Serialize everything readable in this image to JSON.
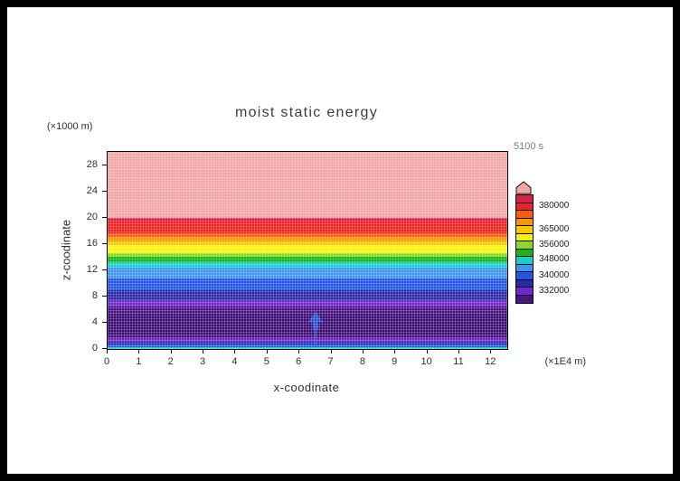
{
  "page": {
    "background": "#000000",
    "canvas_background": "#ffffff"
  },
  "chart_data": {
    "type": "heatmap",
    "title": "moist static energy",
    "timestamp": "5100 s",
    "xlabel": "x-coodinate",
    "ylabel": "z-coodinate",
    "x_units": "(×1E4 m)",
    "y_units": "(×1000 m)",
    "xlim": [
      0,
      12.5
    ],
    "ylim": [
      0,
      30
    ],
    "x_ticks": [
      "0",
      "1",
      "2",
      "3",
      "4",
      "5",
      "6",
      "7",
      "8",
      "9",
      "10",
      "11",
      "12"
    ],
    "y_ticks": [
      "0",
      "4",
      "8",
      "12",
      "16",
      "20",
      "24",
      "28"
    ],
    "legend_position": "right",
    "grid": false,
    "bands": [
      {
        "name": "pink",
        "color": "#f2a6a6",
        "z_from": 20.0,
        "z_to": 30.0
      },
      {
        "name": "crimson",
        "color": "#d8204a",
        "z_from": 19.4,
        "z_to": 20.0
      },
      {
        "name": "red",
        "color": "#ee2222",
        "z_from": 17.6,
        "z_to": 19.4
      },
      {
        "name": "orange-red",
        "color": "#fa5a0a",
        "z_from": 17.0,
        "z_to": 17.6
      },
      {
        "name": "orange",
        "color": "#fa9600",
        "z_from": 16.4,
        "z_to": 17.0
      },
      {
        "name": "amber",
        "color": "#fac800",
        "z_from": 15.8,
        "z_to": 16.4
      },
      {
        "name": "yellow",
        "color": "#f5f50a",
        "z_from": 14.6,
        "z_to": 15.8
      },
      {
        "name": "yellow-green",
        "color": "#8cd91e",
        "z_from": 14.0,
        "z_to": 14.6
      },
      {
        "name": "green",
        "color": "#17b517",
        "z_from": 13.2,
        "z_to": 14.0
      },
      {
        "name": "cyan",
        "color": "#18cdcd",
        "z_from": 12.4,
        "z_to": 13.2
      },
      {
        "name": "light-blue",
        "color": "#3c96f0",
        "z_from": 10.8,
        "z_to": 12.4
      },
      {
        "name": "blue",
        "color": "#2255e6",
        "z_from": 9.0,
        "z_to": 10.8
      },
      {
        "name": "navy",
        "color": "#2a2aa8",
        "z_from": 7.4,
        "z_to": 9.0
      },
      {
        "name": "purple",
        "color": "#7026c8",
        "z_from": 6.4,
        "z_to": 7.4
      },
      {
        "name": "dark-purple-upper",
        "color": "#4a1486",
        "z_from": 5.2,
        "z_to": 6.4
      },
      {
        "name": "violet-core",
        "color": "#3c0d73",
        "z_from": 2.2,
        "z_to": 5.2
      },
      {
        "name": "dark-purple-lower",
        "color": "#4a1486",
        "z_from": 1.6,
        "z_to": 2.2
      },
      {
        "name": "purple-low",
        "color": "#7026c8",
        "z_from": 1.1,
        "z_to": 1.6
      },
      {
        "name": "navy-low",
        "color": "#2a2aa8",
        "z_from": 0.7,
        "z_to": 1.1
      },
      {
        "name": "blue-low",
        "color": "#2255e6",
        "z_from": 0.3,
        "z_to": 0.7
      },
      {
        "name": "cyan-low",
        "color": "#18cdcd",
        "z_from": 0.0,
        "z_to": 0.3
      }
    ],
    "plume": {
      "x": 6.5,
      "z_top": 5.6,
      "z_base": 0.3,
      "color": "#2a50d2"
    },
    "colorbar": {
      "arrow_color": "#f2a6a6",
      "segments_top_to_bottom": [
        "#d8204a",
        "#ee2222",
        "#fa5a0a",
        "#fa9600",
        "#fac800",
        "#f5f50a",
        "#8cd91e",
        "#17b517",
        "#18cdcd",
        "#3c96f0",
        "#2255e6",
        "#2a2aa8",
        "#7026c8",
        "#4a1486"
      ],
      "labels": [
        {
          "text": "380000",
          "pos": 0.1
        },
        {
          "text": "365000",
          "pos": 0.32
        },
        {
          "text": "356000",
          "pos": 0.46
        },
        {
          "text": "348000",
          "pos": 0.6
        },
        {
          "text": "340000",
          "pos": 0.75
        },
        {
          "text": "332000",
          "pos": 0.89
        }
      ]
    }
  }
}
